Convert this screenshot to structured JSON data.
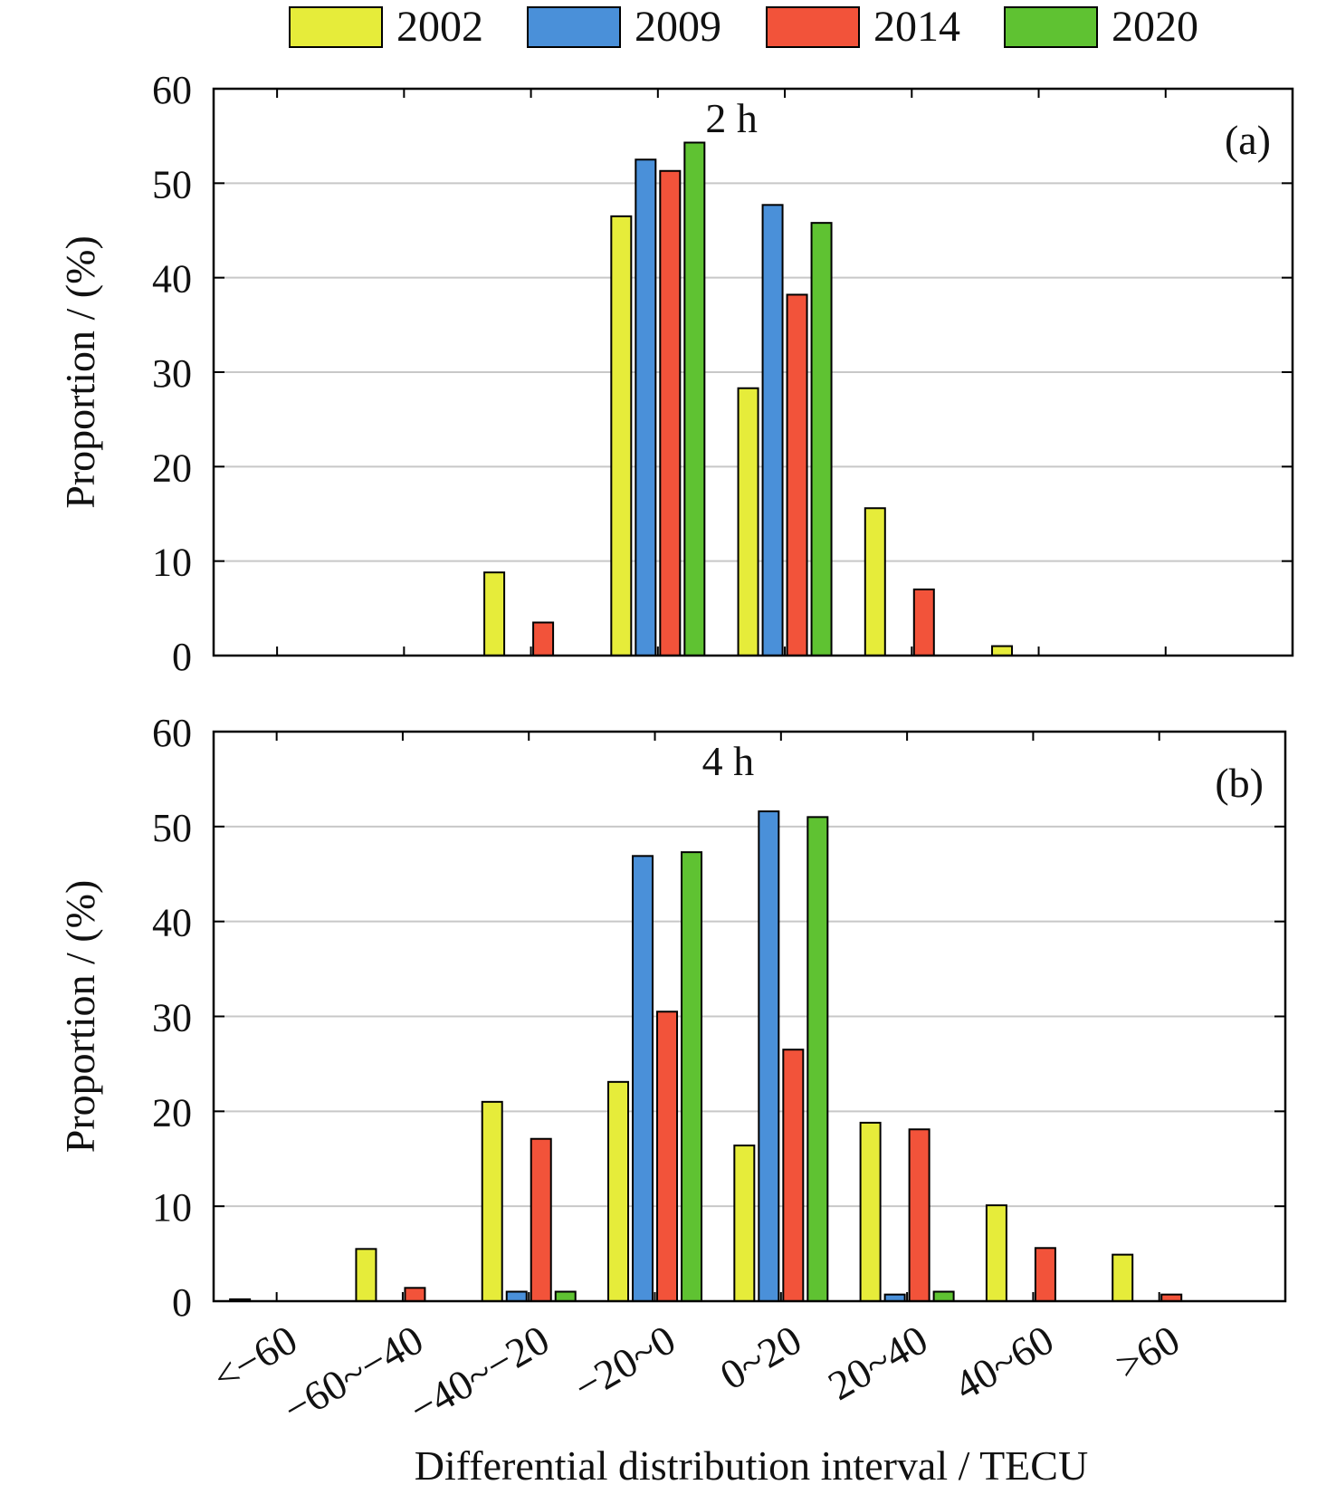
{
  "legend": [
    {
      "label": "2002",
      "color": "#e6ec3a"
    },
    {
      "label": "2009",
      "color": "#4a90d9"
    },
    {
      "label": "2014",
      "color": "#f2533a"
    },
    {
      "label": "2020",
      "color": "#5fc232"
    }
  ],
  "xlabel": "Differential distribution interval / TECU",
  "chart_data": [
    {
      "type": "bar",
      "panel_label": "(a)",
      "annotation": "2 h",
      "ylabel": "Proportion / (%)",
      "ylim": [
        0,
        60
      ],
      "yticks": [
        0,
        10,
        20,
        30,
        40,
        50,
        60
      ],
      "grid": true,
      "legend_position": "top",
      "categories": [
        "<−60",
        "−60~−40",
        "−40~−20",
        "−20~0",
        "0~20",
        "20~40",
        "40~60",
        ">60"
      ],
      "series": [
        {
          "name": "2002",
          "values": [
            0,
            0,
            8.8,
            46.5,
            28.3,
            15.6,
            1.0,
            0
          ]
        },
        {
          "name": "2009",
          "values": [
            0,
            0,
            0,
            52.5,
            47.7,
            0,
            0,
            0
          ]
        },
        {
          "name": "2014",
          "values": [
            0,
            0,
            3.5,
            51.3,
            38.2,
            7.0,
            0,
            0
          ]
        },
        {
          "name": "2020",
          "values": [
            0,
            0,
            0,
            54.3,
            45.8,
            0,
            0,
            0
          ]
        }
      ]
    },
    {
      "type": "bar",
      "panel_label": "(b)",
      "annotation": "4 h",
      "ylabel": "Proportion / (%)",
      "ylim": [
        0,
        60
      ],
      "yticks": [
        0,
        10,
        20,
        30,
        40,
        50,
        60
      ],
      "grid": true,
      "categories": [
        "<−60",
        "−60~−40",
        "−40~−20",
        "−20~0",
        "0~20",
        "20~40",
        "40~60",
        ">60"
      ],
      "series": [
        {
          "name": "2002",
          "values": [
            0.2,
            5.5,
            21.0,
            23.1,
            16.4,
            18.8,
            10.1,
            4.9
          ]
        },
        {
          "name": "2009",
          "values": [
            0,
            0,
            1.0,
            46.9,
            51.6,
            0.7,
            0,
            0
          ]
        },
        {
          "name": "2014",
          "values": [
            0,
            1.4,
            17.1,
            30.5,
            26.5,
            18.1,
            5.6,
            0.7
          ]
        },
        {
          "name": "2020",
          "values": [
            0,
            0,
            1.0,
            47.3,
            51.0,
            1.0,
            0,
            0
          ]
        }
      ]
    }
  ]
}
